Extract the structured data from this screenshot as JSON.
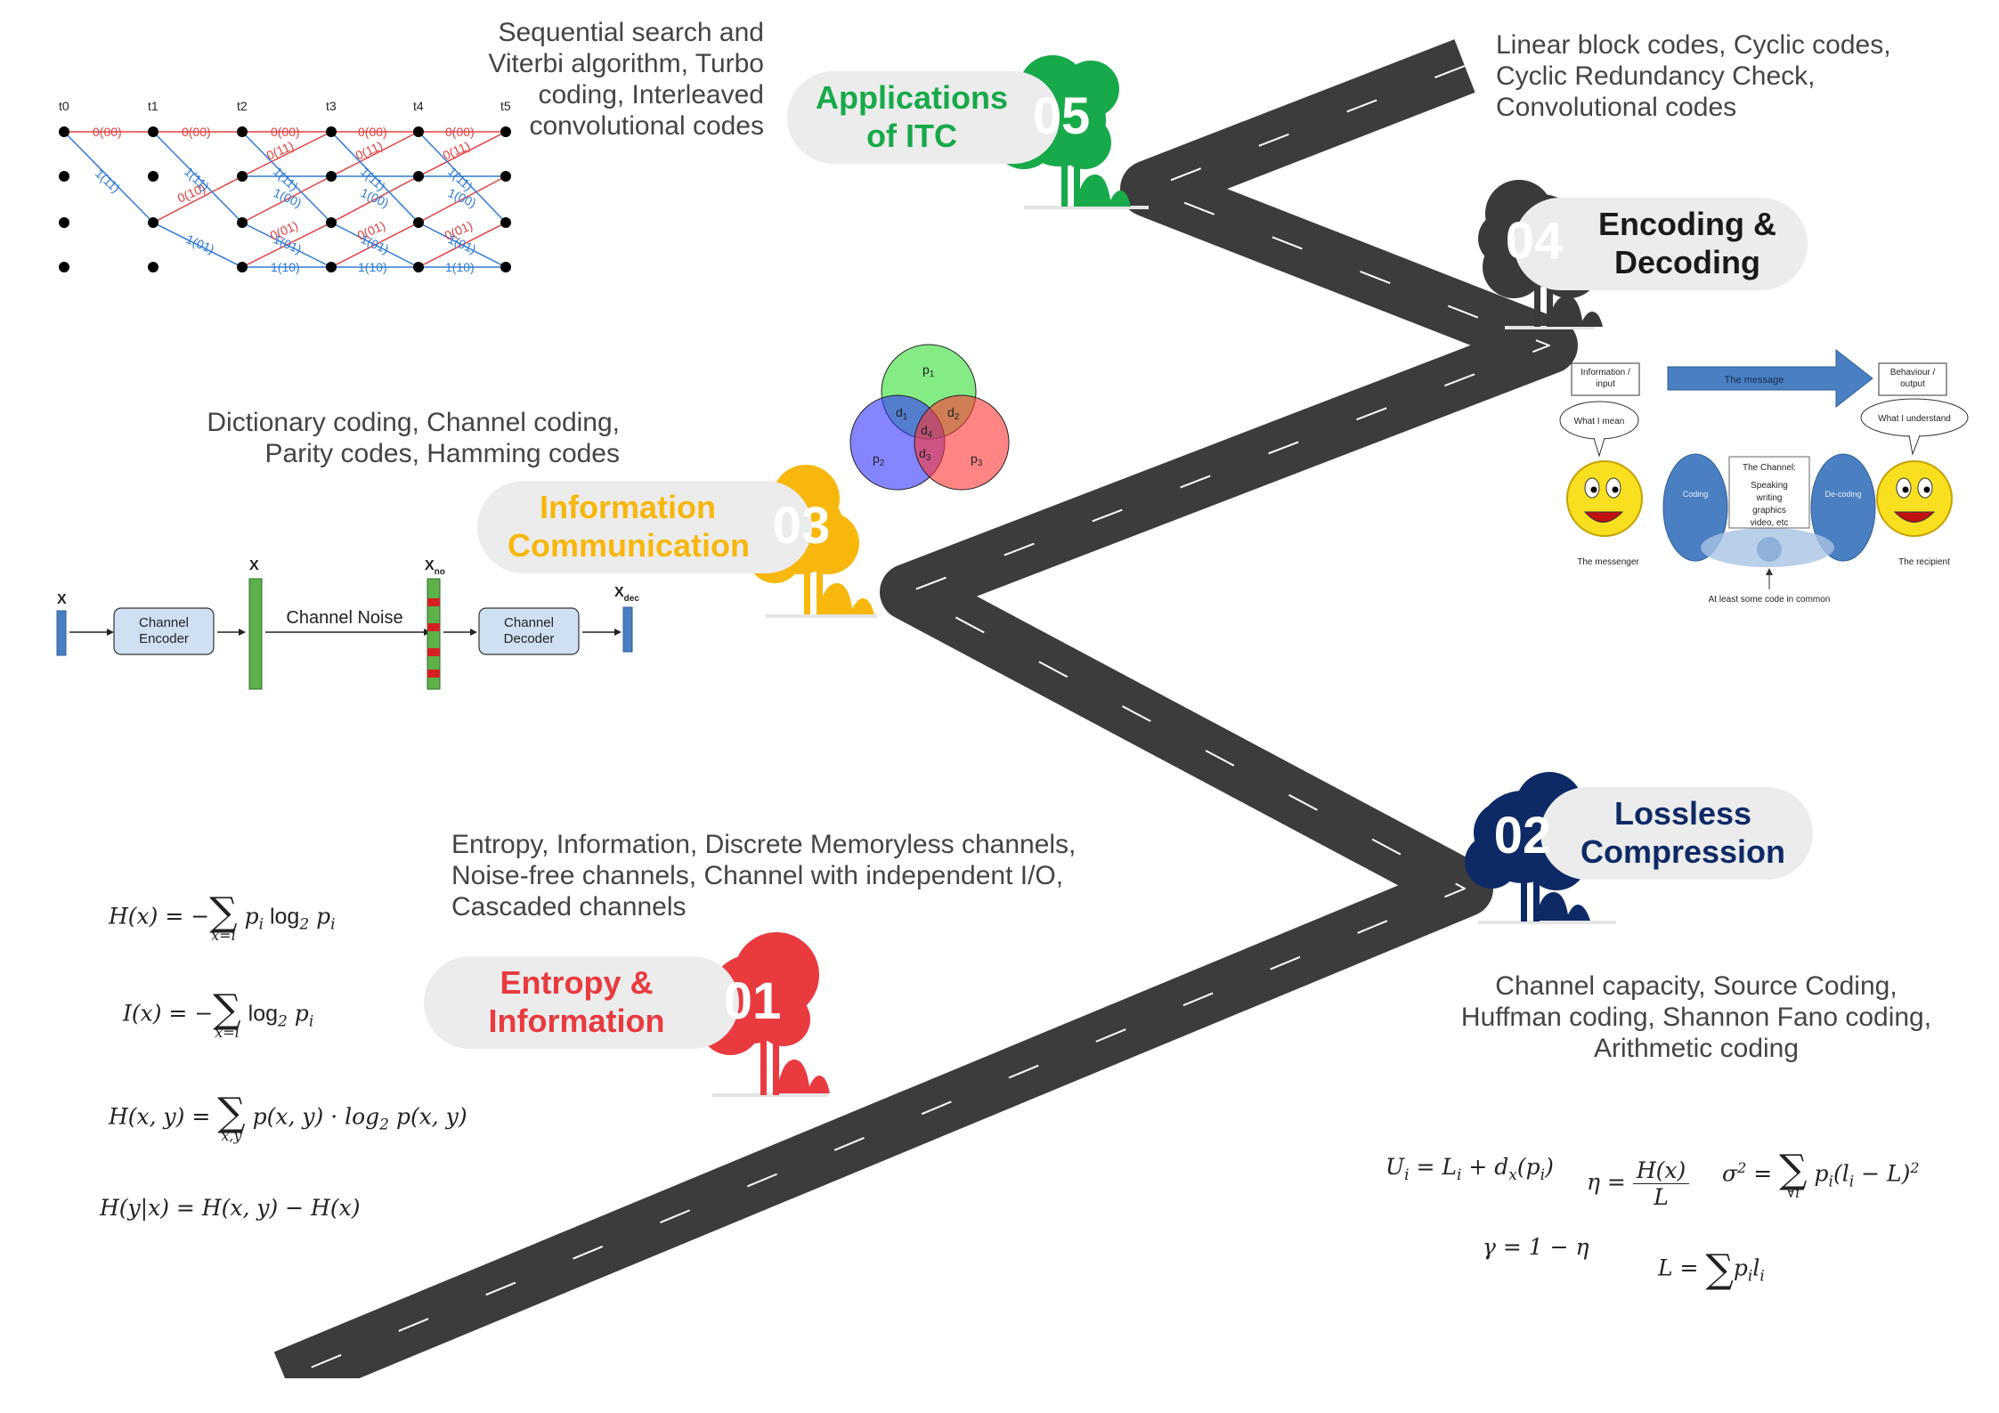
{
  "stages": [
    {
      "number": "01",
      "title_line1": "Entropy &",
      "title_line2": "Information",
      "color": "#e93a3f",
      "topics": [
        "Entropy, Information, Discrete Memoryless channels,",
        "Noise-free channels, Channel with independent I/O,",
        "Cascaded channels"
      ]
    },
    {
      "number": "02",
      "title_line1": "Lossless",
      "title_line2": "Compression",
      "color": "#0e2a66",
      "topics": [
        "Channel capacity, Source Coding,",
        "Huffman coding, Shannon Fano coding,",
        "Arithmetic coding"
      ]
    },
    {
      "number": "03",
      "title_line1": "Information",
      "title_line2": "Communication",
      "color": "#f7b70c",
      "topics": [
        "Dictionary coding, Channel coding,",
        "Parity codes, Hamming codes"
      ]
    },
    {
      "number": "04",
      "title_line1": "Encoding &",
      "title_line2": "Decoding",
      "color": "#3a3a3a",
      "topics": [
        "Linear block codes, Cyclic codes,",
        "Cyclic Redundancy Check,",
        "Convolutional codes"
      ]
    },
    {
      "number": "05",
      "title_line1": "Applications",
      "title_line2": "of ITC",
      "color": "#17a94a",
      "topics": [
        "Sequential search and",
        "Viterbi algorithm, Turbo",
        "coding, Interleaved",
        "convolutional codes"
      ]
    }
  ],
  "trellis": {
    "times": [
      "t0",
      "t1",
      "t2",
      "t3",
      "t4",
      "t5"
    ],
    "top_labels": [
      "0(00)",
      "0(00)",
      "0(00)",
      "0(00)",
      "0(00)"
    ],
    "diag_labels": [
      "1(11)",
      "1(11)",
      "1(11)",
      "1(11)",
      "1(11)"
    ],
    "red_labels": [
      "0(10)",
      "0(11)",
      "0(11)",
      "0(11)"
    ],
    "mid_labels": [
      "1(00)",
      "1(00)",
      "1(00)"
    ],
    "low_red_labels": [
      "0(01)",
      "0(01)",
      "0(01)"
    ],
    "low_blue_labels": [
      "1(01)",
      "1(01)",
      "1(01)",
      "1(01)"
    ],
    "bottom_labels": [
      "1(10)",
      "1(10)",
      "1(10)"
    ]
  },
  "venn": {
    "p1": "p",
    "p1_sub": "1",
    "p2": "p",
    "p2_sub": "2",
    "p3": "p",
    "p3_sub": "3",
    "d1": "d",
    "d1_sub": "1",
    "d2": "d",
    "d2_sub": "2",
    "d3": "d",
    "d3_sub": "3",
    "d4": "d",
    "d4_sub": "4"
  },
  "channel_diagram": {
    "x": "X",
    "xprime": "X",
    "xno": "X",
    "xno_sub": "no",
    "xdec": "X",
    "xdec_sub": "dec",
    "encoder_l1": "Channel",
    "encoder_l2": "Encoder",
    "noise": "Channel Noise",
    "decoder_l1": "Channel",
    "decoder_l2": "Decoder"
  },
  "comm_model": {
    "input_l1": "Information /",
    "input_l2": "input",
    "message": "The message",
    "output_l1": "Behaviour /",
    "output_l2": "output",
    "what_i_mean": "What I mean",
    "what_i_understand": "What I understand",
    "coding": "Coding",
    "decoding": "De-coding",
    "channel_title": "The Channel:",
    "channel_items": [
      "Speaking",
      "writing",
      "graphics",
      "video, etc"
    ],
    "messenger": "The messenger",
    "recipient": "The recipient",
    "common_code": "At least some code in common"
  },
  "equations_left": {
    "hx_lhs": "H(x) = −",
    "hx_lim": "x=i",
    "hx_rhs": "p",
    "hx_rhs_sub": "i",
    "hx_log": " log",
    "hx_log_sub": "2",
    "hx_tail": " p",
    "hx_tail_sub": "i",
    "ix_lhs": "I(x) = −",
    "ix_lim": "x=i",
    "ix_log": "log",
    "ix_log_sub": "2",
    "ix_tail": " p",
    "ix_tail_sub": "i",
    "hxy_lhs": "H(x, y) = ",
    "hxy_lim": "x,y",
    "hxy_rhs": "p(x, y) · log",
    "hxy_rhs_sub": "2",
    "hxy_tail": " p(x, y)",
    "cond": "H(y|x) = H(x, y) − H(x)"
  },
  "equations_right": {
    "u_lhs": "U",
    "u_sub": "i",
    "u_mid": " = L",
    "u_mid_sub": "i",
    "u_rest": " + d",
    "u_rest_sub": "x",
    "u_tail": "(p",
    "u_tail_sub": "i",
    "u_close": ")",
    "eta_lhs": "η = ",
    "eta_num": "H(x)",
    "eta_den": "L",
    "sigma_lhs": "σ",
    "sigma_sup": "2",
    "sigma_eq": " = ",
    "sigma_lim": "∀i",
    "sigma_rhs": "p",
    "sigma_rhs_sub": "i",
    "sigma_mid": "(l",
    "sigma_mid_sub": "i",
    "sigma_tail": " − L)",
    "sigma_tail_sup": "2",
    "gamma": "γ = 1 − η",
    "l_lhs": "L = ",
    "l_rhs": "p",
    "l_rhs_sub": "i",
    "l_tail": "l",
    "l_tail_sub": "i"
  }
}
